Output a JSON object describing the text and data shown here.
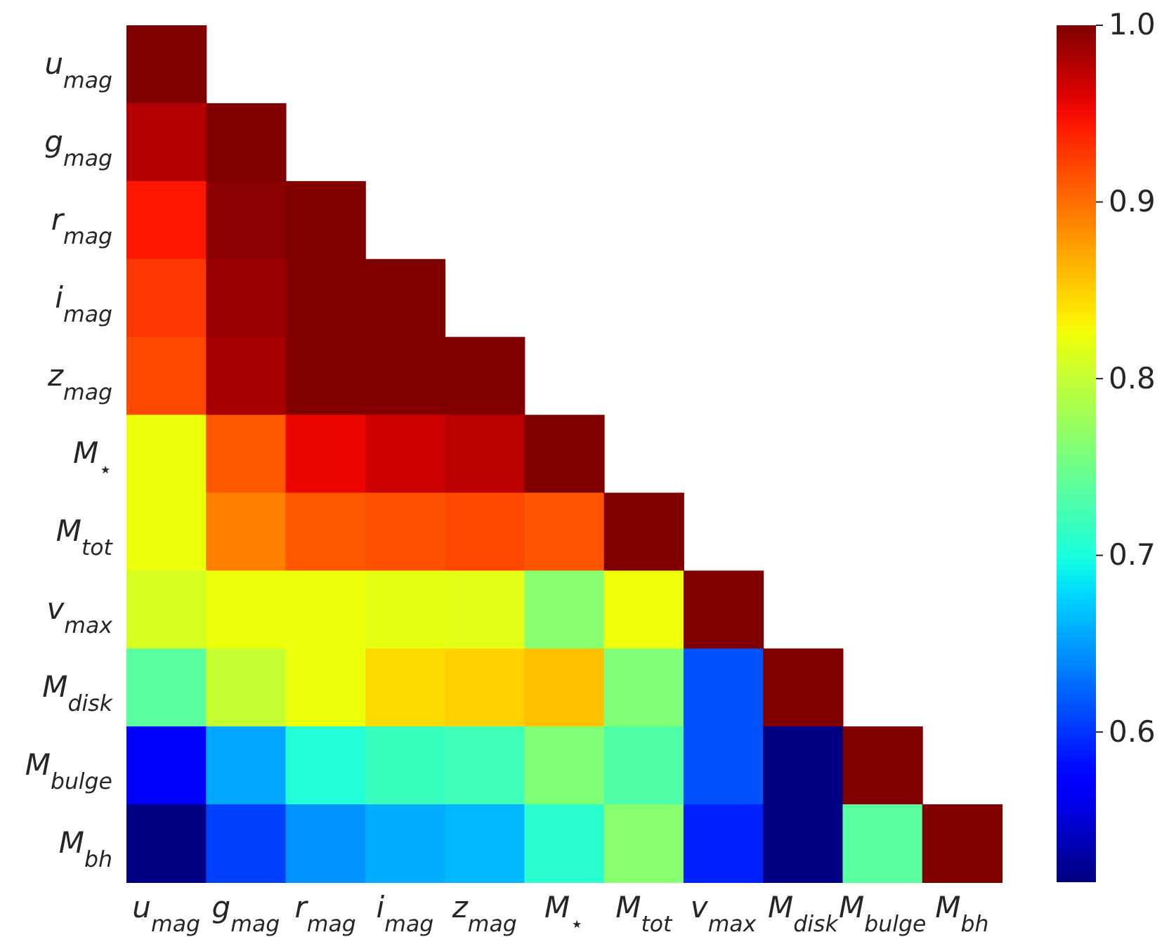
{
  "chart_data": {
    "type": "heatmap",
    "categories": [
      "u$_{mag}$",
      "g$_{mag}$",
      "r$_{mag}$",
      "i$_{mag}$",
      "z$_{mag}$",
      "M$_{⋆}$",
      "M$_{tot}$",
      "v$_{max}$",
      "M$_{disk}$",
      "M$_{bulge}$",
      "M$_{bh}$"
    ],
    "y_categories": [
      "u$_{mag}$",
      "g$_{mag}$",
      "r$_{mag}$",
      "i$_{mag}$",
      "z$_{mag}$",
      "M$_{⋆}$",
      "M$_{tot}$",
      "v$_{max}$",
      "M$_{disk}$",
      "M$_{bulge}$",
      "M$_{bh}$"
    ],
    "cells": [
      [
        1,
        null,
        null,
        null,
        null,
        null,
        null,
        null,
        null,
        null,
        null
      ],
      [
        0.978,
        1,
        null,
        null,
        null,
        null,
        null,
        null,
        null,
        null,
        null
      ],
      [
        0.945,
        0.995,
        1,
        null,
        null,
        null,
        null,
        null,
        null,
        null,
        null
      ],
      [
        0.928,
        0.989,
        1,
        1,
        null,
        null,
        null,
        null,
        null,
        null,
        null
      ],
      [
        0.92,
        0.984,
        0.998,
        0.998,
        1,
        null,
        null,
        null,
        null,
        null,
        null
      ],
      [
        0.824,
        0.912,
        0.954,
        0.968,
        0.975,
        1,
        null,
        null,
        null,
        null,
        null
      ],
      [
        0.824,
        0.891,
        0.912,
        0.915,
        0.92,
        0.913,
        1,
        null,
        null,
        null,
        null
      ],
      [
        0.811,
        0.824,
        0.824,
        0.82,
        0.818,
        0.765,
        0.825,
        1,
        null,
        null,
        null
      ],
      [
        0.737,
        0.801,
        0.824,
        0.844,
        0.849,
        0.857,
        0.76,
        0.614,
        1,
        null,
        null
      ],
      [
        0.568,
        0.656,
        0.704,
        0.718,
        0.722,
        0.76,
        0.731,
        0.614,
        0.516,
        1,
        null
      ],
      [
        0.516,
        0.606,
        0.645,
        0.658,
        0.663,
        0.709,
        0.765,
        0.591,
        0.516,
        0.737,
        1
      ]
    ],
    "clim": [
      0.515,
      1.0
    ],
    "cticks": [
      {
        "value": 0.6,
        "label": "0.6"
      },
      {
        "value": 0.7,
        "label": "0.7"
      },
      {
        "value": 0.8,
        "label": "0.8"
      },
      {
        "value": 0.9,
        "label": "0.9"
      },
      {
        "value": 1.0,
        "label": "1.0"
      }
    ]
  }
}
